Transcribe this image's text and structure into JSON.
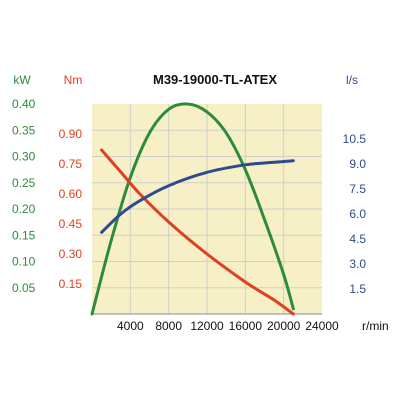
{
  "chart_data": {
    "type": "line",
    "title": "M39-19000-TL-ATEX",
    "xlabel": "r/min",
    "xlim": [
      0,
      24000
    ],
    "x_ticks": [
      4000,
      8000,
      12000,
      16000,
      20000,
      24000
    ],
    "grid": true,
    "plot_background": "#f7f0c6",
    "axes": {
      "power": {
        "unit": "kW",
        "color": "#2e8b3a",
        "ylim": [
          0,
          0.4
        ],
        "ticks": [
          "0.05",
          "0.10",
          "0.15",
          "0.20",
          "0.25",
          "0.30",
          "0.35",
          "0.40"
        ]
      },
      "torque": {
        "unit": "Nm",
        "color": "#e0401f",
        "ylim": [
          0,
          1.05
        ],
        "ticks": [
          "0.15",
          "0.30",
          "0.45",
          "0.60",
          "0.75",
          "0.90"
        ]
      },
      "flow": {
        "unit": "l/s",
        "color": "#2e4b8f",
        "ylim": [
          0,
          12.6
        ],
        "ticks": [
          "1.5",
          "3.0",
          "4.5",
          "6.0",
          "7.5",
          "9.0",
          "10.5"
        ]
      }
    },
    "series": [
      {
        "axis": "power",
        "color": "#2e8b3a",
        "x": [
          0,
          2000,
          4000,
          6000,
          8000,
          10000,
          12000,
          14000,
          16000,
          18000,
          20000,
          21000
        ],
        "y": [
          0.0,
          0.14,
          0.26,
          0.345,
          0.39,
          0.4,
          0.385,
          0.345,
          0.275,
          0.18,
          0.075,
          0.01
        ]
      },
      {
        "axis": "torque",
        "color": "#e0401f",
        "x": [
          1000,
          3000,
          5000,
          8000,
          12000,
          16000,
          19000,
          21000
        ],
        "y": [
          0.82,
          0.71,
          0.6,
          0.46,
          0.3,
          0.16,
          0.07,
          0.0
        ]
      },
      {
        "axis": "flow",
        "color": "#2e4b8f",
        "x": [
          1000,
          3000,
          5000,
          8000,
          12000,
          16000,
          19000,
          21000
        ],
        "y": [
          4.9,
          6.0,
          6.8,
          7.7,
          8.5,
          8.95,
          9.1,
          9.2
        ]
      }
    ]
  }
}
